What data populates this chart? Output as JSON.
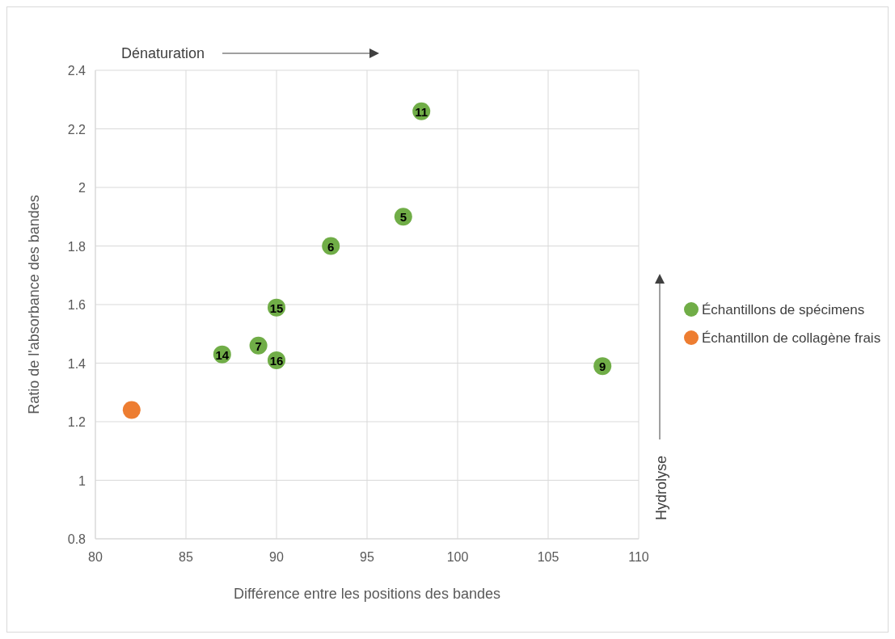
{
  "chart_data": {
    "type": "scatter",
    "xlabel": "Différence entre les positions des bandes",
    "ylabel": "Ratio de l'absorbance des bandes",
    "xlim": [
      80,
      110
    ],
    "xticks": [
      80,
      85,
      90,
      95,
      100,
      105,
      110
    ],
    "ylim": [
      0.8,
      2.4
    ],
    "yticks": [
      0.8,
      1,
      1.2,
      1.4,
      1.6,
      1.8,
      2,
      2.2,
      2.4
    ],
    "grid": true,
    "legend": "right",
    "marker": "circle",
    "annotations": [
      "Dénaturation",
      "Hydrolyse",
      {
        "text": "11",
        "x": 98,
        "y": 2.26
      },
      {
        "text": "5",
        "x": 97,
        "y": 1.9
      },
      {
        "text": "6",
        "x": 93,
        "y": 1.8
      },
      {
        "text": "15",
        "x": 90,
        "y": 1.59
      },
      {
        "text": "7",
        "x": 89,
        "y": 1.46
      },
      {
        "text": "14",
        "x": 87,
        "y": 1.43
      },
      {
        "text": "16",
        "x": 90,
        "y": 1.41
      },
      {
        "text": "9",
        "x": 108,
        "y": 1.39
      }
    ],
    "series": [
      {
        "name": "Échantillons de spécimens",
        "color": "#70ad47",
        "x": [
          98,
          97,
          93,
          90,
          89,
          87,
          90,
          108
        ],
        "values": [
          2.26,
          1.9,
          1.8,
          1.59,
          1.46,
          1.43,
          1.41,
          1.39
        ]
      },
      {
        "name": "Échantillon de collagène frais",
        "color": "#ed7d31",
        "x": [
          82
        ],
        "values": [
          1.24
        ]
      }
    ]
  }
}
